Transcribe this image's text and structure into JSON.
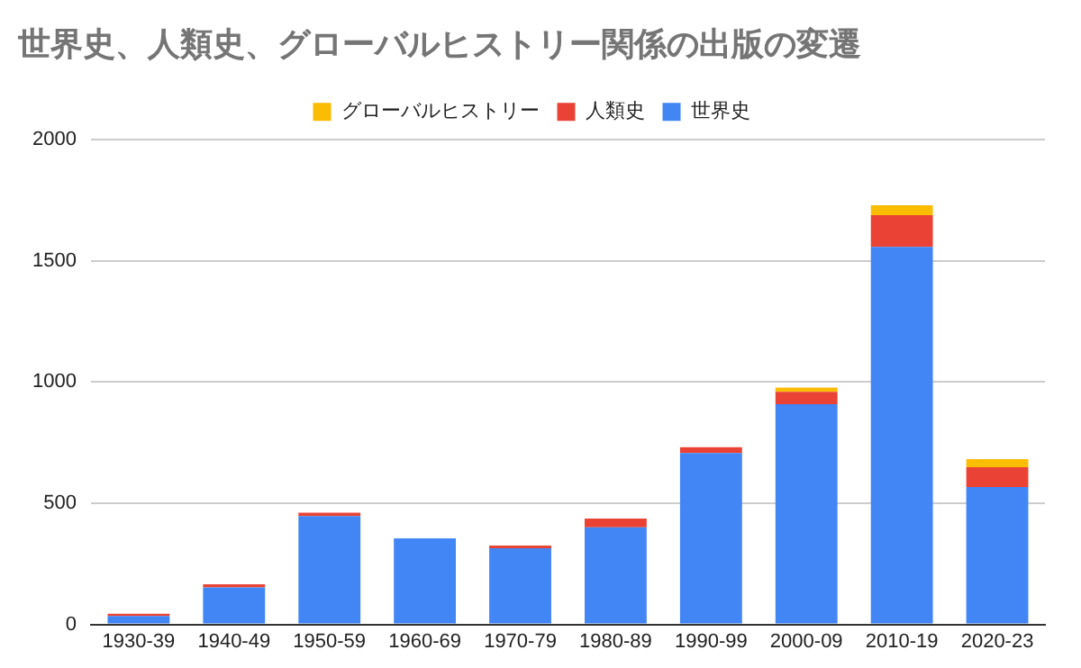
{
  "chart_data": {
    "type": "bar",
    "title": "世界史、人類史、グローバルヒストリー関係の出版の変遷",
    "stacked": true,
    "categories": [
      "1930-39",
      "1940-49",
      "1950-59",
      "1960-69",
      "1970-79",
      "1980-89",
      "1990-99",
      "2000-09",
      "2010-19",
      "2020-23"
    ],
    "series": [
      {
        "name": "世界史",
        "color": "#4285f4",
        "values": [
          35,
          153,
          447,
          355,
          314,
          401,
          707,
          909,
          1558,
          567
        ]
      },
      {
        "name": "人類史",
        "color": "#ea4335",
        "values": [
          9,
          13,
          14,
          0,
          11,
          36,
          24,
          51,
          131,
          82
        ]
      },
      {
        "name": "グローバルヒストリー",
        "color": "#fbbc04",
        "values": [
          0,
          0,
          0,
          0,
          0,
          0,
          0,
          17,
          41,
          33
        ]
      }
    ],
    "ylim": [
      0,
      2000
    ],
    "yticks": [
      0,
      500,
      1000,
      1500,
      2000
    ],
    "grid": "y",
    "legend": "top"
  }
}
